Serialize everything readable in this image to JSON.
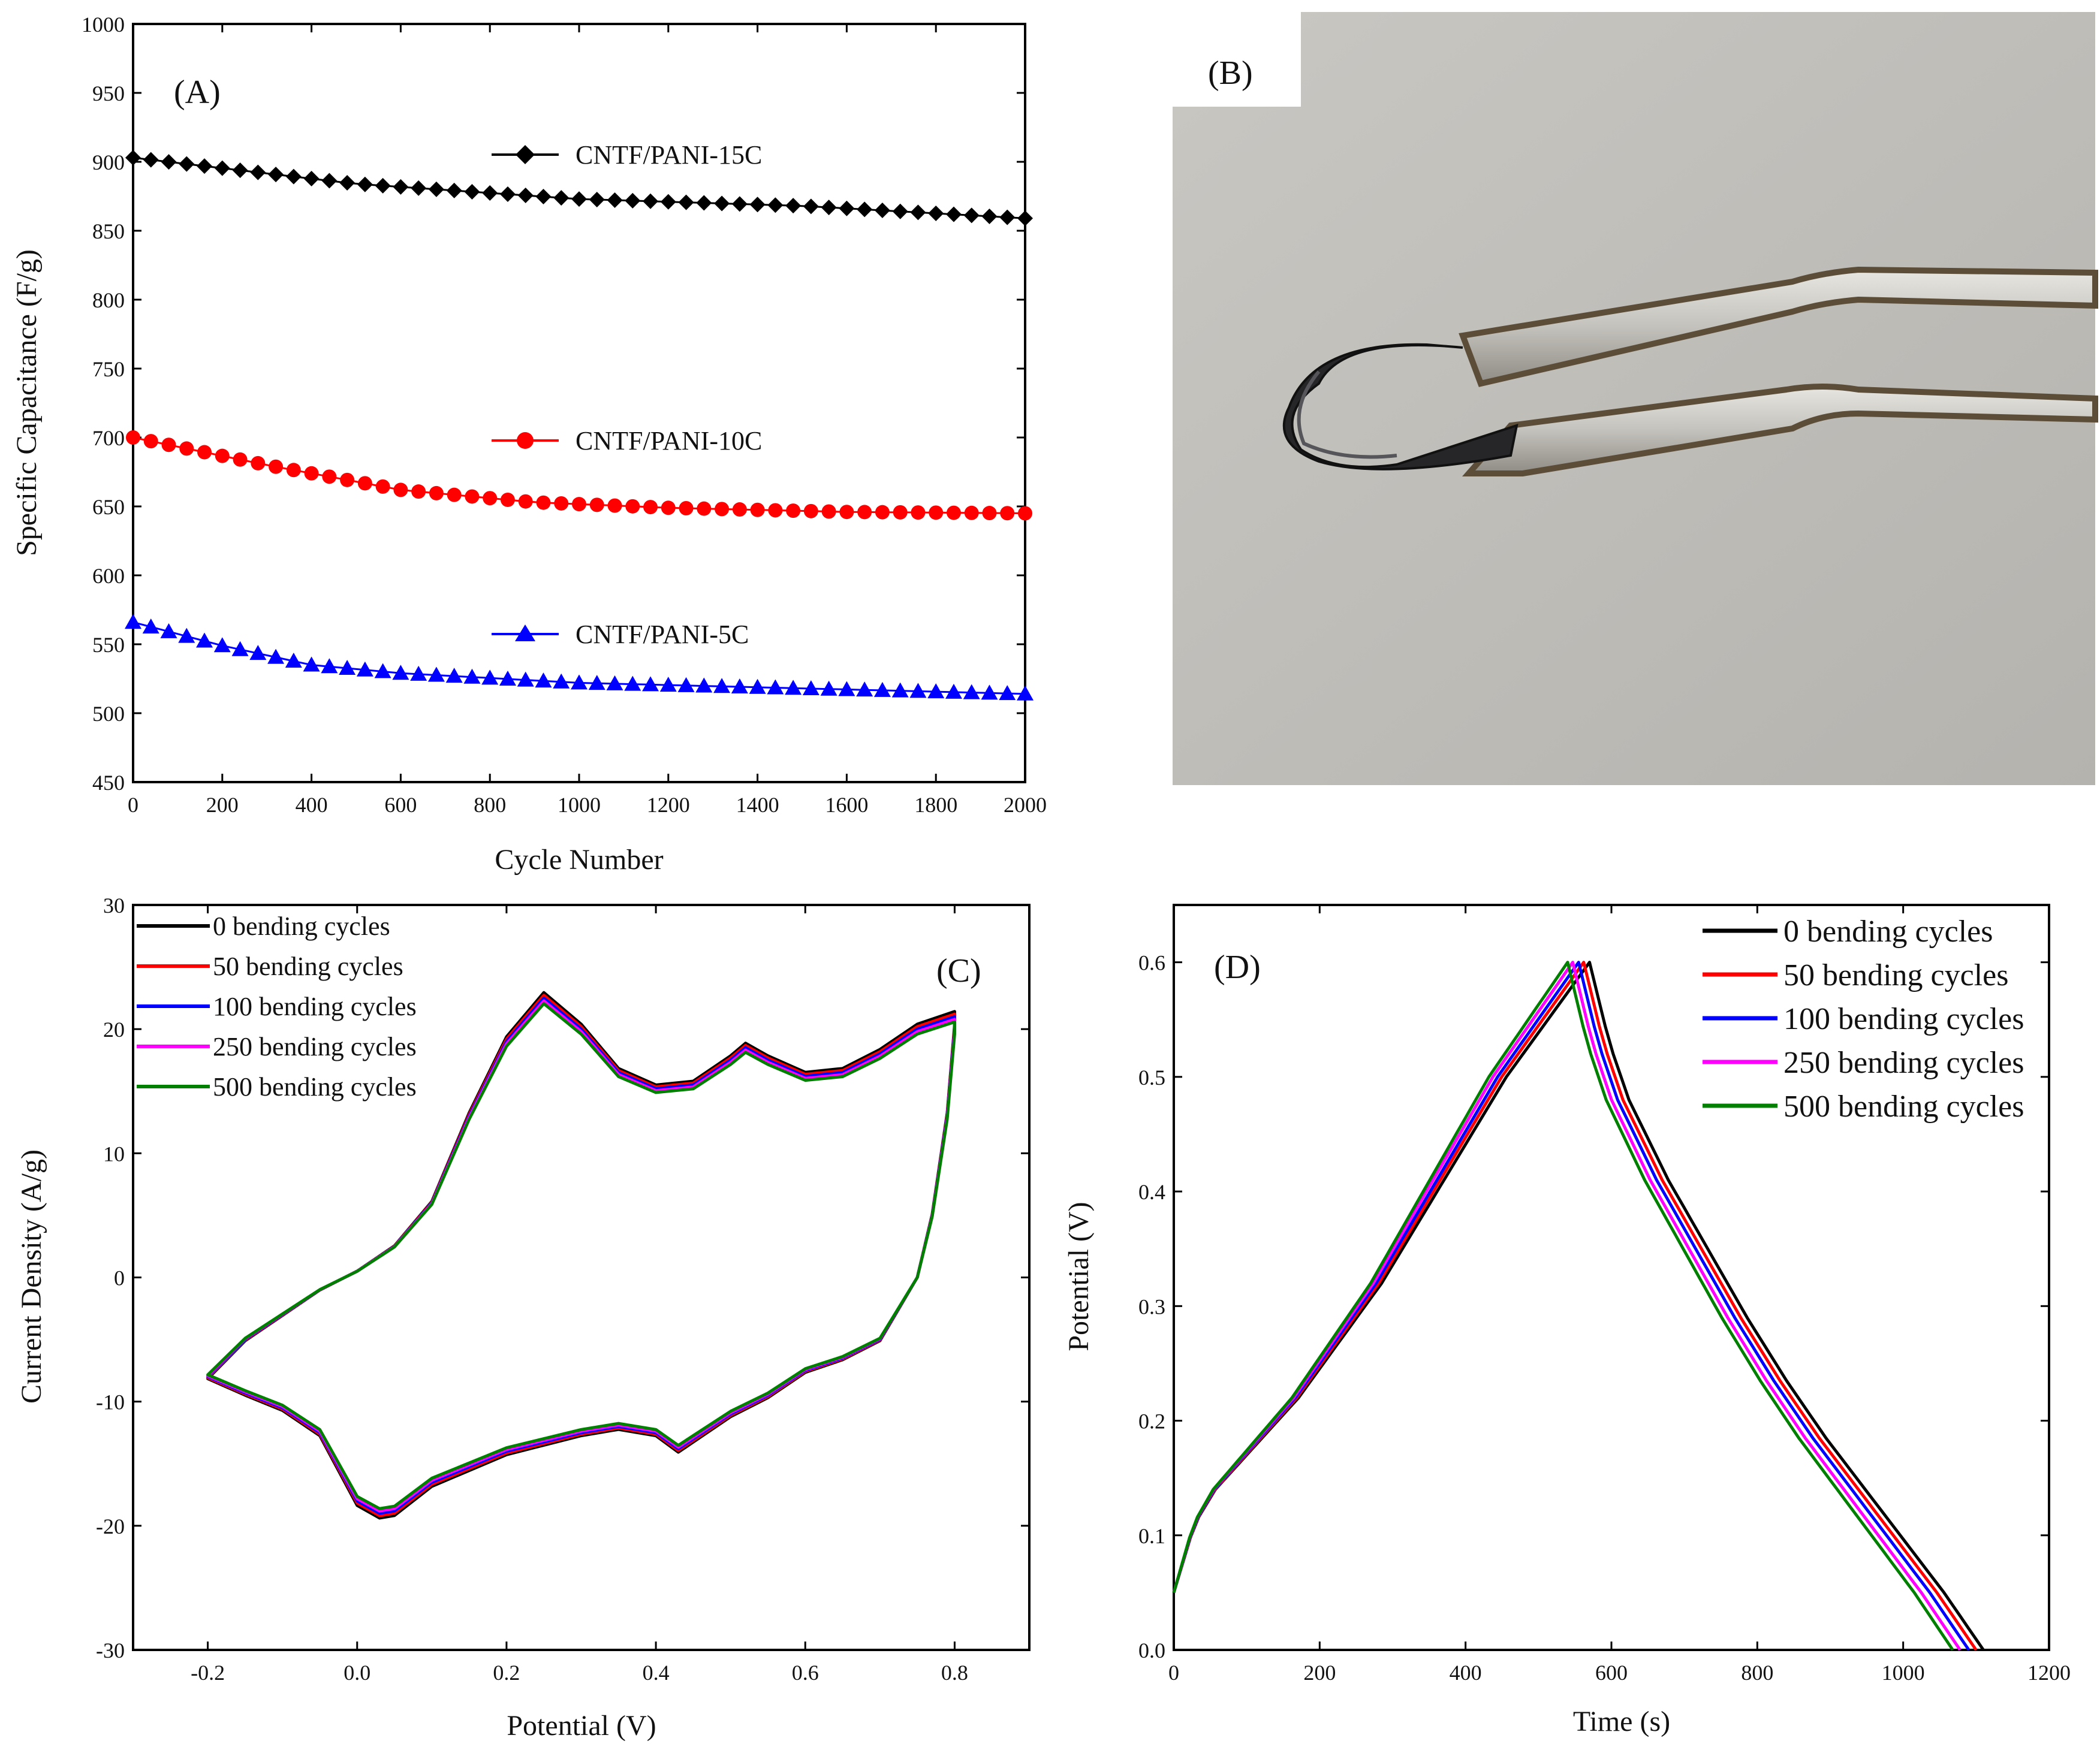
{
  "panels": {
    "A": "(A)",
    "B": "(B)",
    "C": "(C)",
    "D": "(D)"
  },
  "photo": {
    "description_label": "(B)"
  },
  "chart_data": [
    {
      "id": "A",
      "type": "scatter",
      "title": "",
      "xlabel": "Cycle Number",
      "ylabel": "Specific Capacitance (F/g)",
      "xlim": [
        0,
        2000
      ],
      "ylim": [
        450,
        1000
      ],
      "xticks": [
        0,
        200,
        400,
        600,
        800,
        1000,
        1200,
        1400,
        1600,
        1800,
        2000
      ],
      "yticks": [
        450,
        500,
        550,
        600,
        650,
        700,
        750,
        800,
        850,
        900,
        950,
        1000
      ],
      "series": [
        {
          "name": "CNTF/PANI-15C",
          "color": "#000000",
          "marker": "diamond",
          "x": [
            0,
            500,
            1000,
            1500,
            2000
          ],
          "y": [
            903,
            884,
            873,
            868,
            859
          ]
        },
        {
          "name": "CNTF/PANI-10C",
          "color": "#ff0000",
          "marker": "circle",
          "x": [
            0,
            300,
            600,
            900,
            1200,
            1600,
            2000
          ],
          "y": [
            700,
            680,
            662,
            653,
            649,
            646,
            645
          ]
        },
        {
          "name": "CNTF/PANI-5C",
          "color": "#0000ff",
          "marker": "triangle",
          "x": [
            0,
            200,
            400,
            600,
            1000,
            1500,
            2000
          ],
          "y": [
            566,
            549,
            535,
            529,
            522,
            518,
            514
          ]
        }
      ]
    },
    {
      "id": "C",
      "type": "line",
      "title": "",
      "xlabel": "Potential (V)",
      "ylabel": "Current Density (A/g)",
      "xlim": [
        -0.3,
        0.9
      ],
      "ylim": [
        -30,
        30
      ],
      "xticks": [
        -0.2,
        0.0,
        0.2,
        0.4,
        0.6,
        0.8
      ],
      "xtick_labels": [
        "-0.2",
        "0.0",
        "0.2",
        "0.4",
        "0.6",
        "0.8"
      ],
      "yticks": [
        -30,
        -20,
        -10,
        0,
        10,
        20,
        30
      ],
      "series": [
        {
          "name": "0 bending cycles",
          "color": "#000000",
          "scale": 1.02
        },
        {
          "name": "50 bending cycles",
          "color": "#ff0000",
          "scale": 1.01
        },
        {
          "name": "100 bending cycles",
          "color": "#0000ff",
          "scale": 1.0
        },
        {
          "name": "250 bending cycles",
          "color": "#ff00ff",
          "scale": 0.99
        },
        {
          "name": "500 bending cycles",
          "color": "#008000",
          "scale": 0.98
        }
      ],
      "curve": {
        "upper_x": [
          -0.2,
          -0.15,
          -0.1,
          -0.05,
          0.0,
          0.05,
          0.1,
          0.15,
          0.2,
          0.25,
          0.3,
          0.35,
          0.4,
          0.45,
          0.5,
          0.52,
          0.55,
          0.6,
          0.65,
          0.7,
          0.75,
          0.8
        ],
        "upper_y": [
          -8,
          -5,
          -3,
          -1,
          0.5,
          2.5,
          6,
          13,
          19,
          22.5,
          20,
          16.5,
          15.2,
          15.5,
          17.5,
          18.5,
          17.5,
          16.2,
          16.5,
          18,
          20,
          21
        ],
        "lower_x": [
          0.8,
          0.79,
          0.77,
          0.75,
          0.72,
          0.7,
          0.65,
          0.6,
          0.55,
          0.5,
          0.45,
          0.43,
          0.4,
          0.35,
          0.3,
          0.2,
          0.1,
          0.05,
          0.03,
          0.0,
          -0.05,
          -0.1,
          -0.15,
          -0.2
        ],
        "lower_y": [
          20,
          13,
          5,
          0,
          -3,
          -5,
          -6.5,
          -7.5,
          -9.5,
          -11,
          -13,
          -13.8,
          -12.5,
          -12,
          -12.5,
          -14,
          -16.5,
          -18.8,
          -19,
          -18,
          -12.5,
          -10.5,
          -9.3,
          -8
        ]
      }
    },
    {
      "id": "D",
      "type": "line",
      "title": "",
      "xlabel": "Time (s)",
      "ylabel": "Potential (V)",
      "xlim": [
        0,
        1200
      ],
      "ylim": [
        0,
        0.65
      ],
      "xticks": [
        0,
        200,
        400,
        600,
        800,
        1000,
        1200
      ],
      "yticks": [
        0.0,
        0.1,
        0.2,
        0.3,
        0.4,
        0.5,
        0.6
      ],
      "ytick_labels": [
        "0.0",
        "0.1",
        "0.2",
        "0.3",
        "0.4",
        "0.5",
        "0.6"
      ],
      "series": [
        {
          "name": "0 bending cycles",
          "color": "#000000",
          "peak_t": 570,
          "end_t": 1110
        },
        {
          "name": "50 bending cycles",
          "color": "#ff0000",
          "peak_t": 562,
          "end_t": 1100
        },
        {
          "name": "100 bending cycles",
          "color": "#0000ff",
          "peak_t": 555,
          "end_t": 1090
        },
        {
          "name": "250 bending cycles",
          "color": "#ff00ff",
          "peak_t": 547,
          "end_t": 1078
        },
        {
          "name": "500 bending cycles",
          "color": "#008000",
          "peak_t": 540,
          "end_t": 1068
        }
      ],
      "charge_shape": {
        "frac": [
          0,
          0.05,
          0.1,
          0.2,
          0.3,
          0.4,
          0.5,
          0.6,
          0.7,
          0.8,
          0.9,
          1.0
        ],
        "v": [
          0.05,
          0.11,
          0.14,
          0.18,
          0.22,
          0.27,
          0.32,
          0.38,
          0.44,
          0.5,
          0.55,
          0.6
        ]
      },
      "discharge_shape": {
        "frac": [
          0,
          0.05,
          0.1,
          0.2,
          0.3,
          0.4,
          0.5,
          0.6,
          0.7,
          0.8,
          0.9,
          0.95,
          1.0
        ],
        "v": [
          0.6,
          0.53,
          0.48,
          0.41,
          0.35,
          0.29,
          0.235,
          0.185,
          0.14,
          0.095,
          0.05,
          0.025,
          0.0
        ]
      }
    }
  ]
}
